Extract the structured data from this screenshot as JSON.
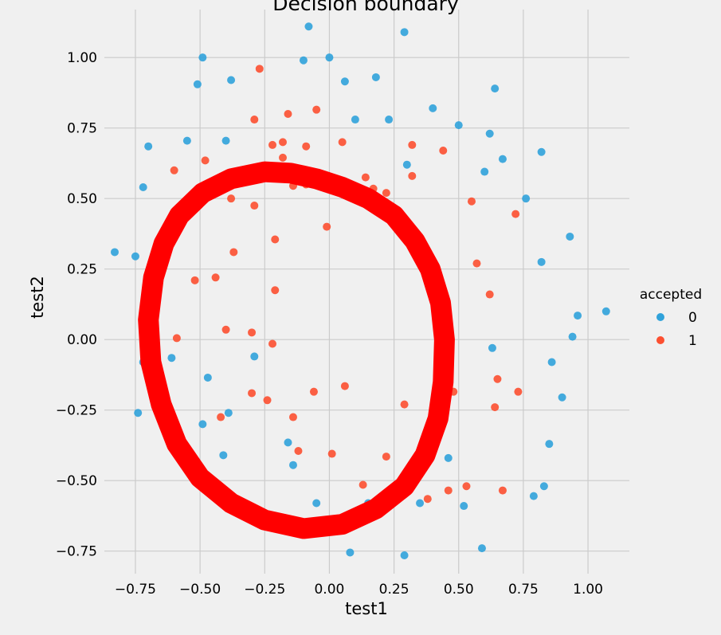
{
  "chart_data": {
    "type": "scatter",
    "title": "Decision boundary",
    "xlabel": "test1",
    "ylabel": "test2",
    "xlim": [
      -0.87,
      1.16
    ],
    "ylim": [
      -0.83,
      1.17
    ],
    "x_ticks": [
      -0.75,
      -0.5,
      -0.25,
      0.0,
      0.25,
      0.5,
      0.75,
      1.0
    ],
    "x_tick_labels": [
      "−0.75",
      "−0.50",
      "−0.25",
      "0.00",
      "0.25",
      "0.50",
      "0.75",
      "1.00"
    ],
    "y_ticks": [
      -0.75,
      -0.5,
      -0.25,
      0.0,
      0.25,
      0.5,
      0.75,
      1.0
    ],
    "y_tick_labels": [
      "−0.75",
      "−0.50",
      "−0.25",
      "0.00",
      "0.25",
      "0.50",
      "0.75",
      "1.00"
    ],
    "grid": true,
    "legend": {
      "title": "accepted",
      "placement": "right"
    },
    "series": [
      {
        "name": "0",
        "color": "#30a2da",
        "points": [
          [
            -0.08,
            1.11
          ],
          [
            0.29,
            1.09
          ],
          [
            -0.49,
            1.0
          ],
          [
            -0.1,
            0.99
          ],
          [
            0.0,
            1.0
          ],
          [
            -0.51,
            0.905
          ],
          [
            -0.38,
            0.92
          ],
          [
            0.06,
            0.915
          ],
          [
            0.18,
            0.93
          ],
          [
            0.64,
            0.89
          ],
          [
            0.1,
            0.78
          ],
          [
            0.23,
            0.78
          ],
          [
            0.4,
            0.82
          ],
          [
            0.5,
            0.76
          ],
          [
            -0.55,
            0.705
          ],
          [
            -0.4,
            0.705
          ],
          [
            -0.7,
            0.685
          ],
          [
            0.62,
            0.73
          ],
          [
            0.67,
            0.64
          ],
          [
            0.82,
            0.665
          ],
          [
            0.3,
            0.62
          ],
          [
            0.6,
            0.595
          ],
          [
            -0.72,
            0.54
          ],
          [
            0.76,
            0.5
          ],
          [
            -0.83,
            0.31
          ],
          [
            -0.75,
            0.295
          ],
          [
            0.93,
            0.365
          ],
          [
            0.82,
            0.275
          ],
          [
            0.96,
            0.085
          ],
          [
            1.07,
            0.1
          ],
          [
            0.94,
            0.01
          ],
          [
            0.63,
            -0.03
          ],
          [
            -0.7,
            0.04
          ],
          [
            -0.72,
            -0.08
          ],
          [
            -0.61,
            -0.065
          ],
          [
            -0.29,
            -0.06
          ],
          [
            0.86,
            -0.08
          ],
          [
            -0.47,
            -0.135
          ],
          [
            -0.67,
            -0.215
          ],
          [
            0.9,
            -0.205
          ],
          [
            -0.74,
            -0.26
          ],
          [
            -0.39,
            -0.26
          ],
          [
            -0.49,
            -0.3
          ],
          [
            0.85,
            -0.37
          ],
          [
            -0.16,
            -0.365
          ],
          [
            -0.41,
            -0.41
          ],
          [
            0.46,
            -0.42
          ],
          [
            -0.14,
            -0.445
          ],
          [
            0.83,
            -0.52
          ],
          [
            0.79,
            -0.555
          ],
          [
            -0.05,
            -0.58
          ],
          [
            0.15,
            -0.58
          ],
          [
            0.35,
            -0.58
          ],
          [
            0.52,
            -0.59
          ],
          [
            -0.24,
            -0.64
          ],
          [
            0.08,
            -0.755
          ],
          [
            0.29,
            -0.765
          ],
          [
            0.59,
            -0.74
          ]
        ]
      },
      {
        "name": "1",
        "color": "#fc4f30",
        "points": [
          [
            -0.27,
            0.96
          ],
          [
            -0.29,
            0.78
          ],
          [
            -0.16,
            0.8
          ],
          [
            -0.05,
            0.815
          ],
          [
            -0.22,
            0.69
          ],
          [
            -0.18,
            0.7
          ],
          [
            -0.09,
            0.685
          ],
          [
            0.05,
            0.7
          ],
          [
            0.32,
            0.69
          ],
          [
            0.44,
            0.67
          ],
          [
            -0.48,
            0.635
          ],
          [
            -0.18,
            0.645
          ],
          [
            -0.6,
            0.6
          ],
          [
            0.14,
            0.575
          ],
          [
            0.32,
            0.58
          ],
          [
            -0.14,
            0.545
          ],
          [
            -0.09,
            0.55
          ],
          [
            0.17,
            0.535
          ],
          [
            0.22,
            0.52
          ],
          [
            -0.38,
            0.5
          ],
          [
            -0.29,
            0.475
          ],
          [
            -0.52,
            0.465
          ],
          [
            0.55,
            0.49
          ],
          [
            0.72,
            0.445
          ],
          [
            -0.01,
            0.4
          ],
          [
            -0.21,
            0.355
          ],
          [
            -0.63,
            0.335
          ],
          [
            -0.37,
            0.31
          ],
          [
            0.57,
            0.27
          ],
          [
            -0.44,
            0.22
          ],
          [
            -0.52,
            0.21
          ],
          [
            -0.21,
            0.175
          ],
          [
            0.62,
            0.16
          ],
          [
            -0.4,
            0.035
          ],
          [
            -0.3,
            0.025
          ],
          [
            -0.59,
            0.005
          ],
          [
            -0.22,
            -0.015
          ],
          [
            0.46,
            0.01
          ],
          [
            0.06,
            -0.165
          ],
          [
            0.65,
            -0.14
          ],
          [
            -0.3,
            -0.19
          ],
          [
            -0.06,
            -0.185
          ],
          [
            0.48,
            -0.185
          ],
          [
            0.73,
            -0.185
          ],
          [
            -0.24,
            -0.215
          ],
          [
            0.29,
            -0.23
          ],
          [
            0.64,
            -0.24
          ],
          [
            -0.42,
            -0.275
          ],
          [
            -0.14,
            -0.275
          ],
          [
            -0.12,
            -0.395
          ],
          [
            0.01,
            -0.405
          ],
          [
            0.22,
            -0.415
          ],
          [
            0.13,
            -0.515
          ],
          [
            0.46,
            -0.535
          ],
          [
            0.53,
            -0.52
          ],
          [
            0.67,
            -0.535
          ],
          [
            0.38,
            -0.565
          ]
        ]
      }
    ],
    "decision_boundary": {
      "color": "#ff0000",
      "points": [
        [
          -0.25,
          0.595
        ],
        [
          -0.15,
          0.59
        ],
        [
          -0.05,
          0.57
        ],
        [
          0.05,
          0.54
        ],
        [
          0.15,
          0.5
        ],
        [
          0.25,
          0.44
        ],
        [
          0.33,
          0.35
        ],
        [
          0.39,
          0.25
        ],
        [
          0.43,
          0.13
        ],
        [
          0.445,
          0.0
        ],
        [
          0.44,
          -0.15
        ],
        [
          0.42,
          -0.28
        ],
        [
          0.37,
          -0.41
        ],
        [
          0.29,
          -0.52
        ],
        [
          0.18,
          -0.6
        ],
        [
          0.05,
          -0.655
        ],
        [
          -0.1,
          -0.67
        ],
        [
          -0.25,
          -0.64
        ],
        [
          -0.38,
          -0.58
        ],
        [
          -0.5,
          -0.49
        ],
        [
          -0.59,
          -0.37
        ],
        [
          -0.65,
          -0.23
        ],
        [
          -0.69,
          -0.08
        ],
        [
          -0.7,
          0.07
        ],
        [
          -0.68,
          0.22
        ],
        [
          -0.64,
          0.34
        ],
        [
          -0.58,
          0.44
        ],
        [
          -0.49,
          0.52
        ],
        [
          -0.38,
          0.57
        ]
      ]
    }
  }
}
